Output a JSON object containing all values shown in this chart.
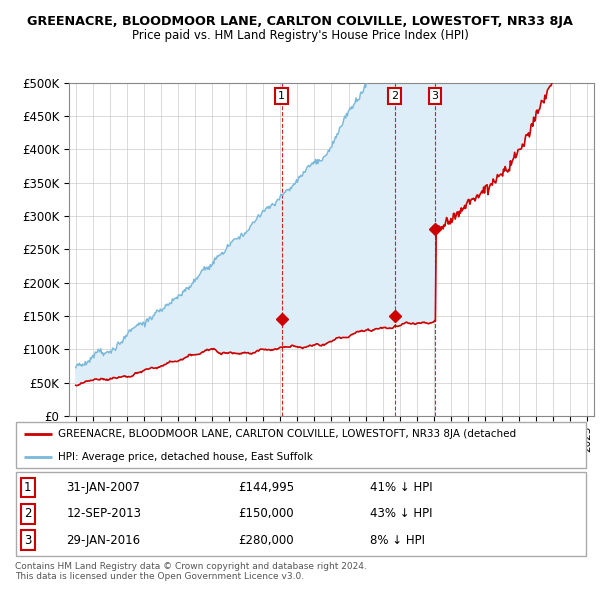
{
  "title": "GREENACRE, BLOODMOOR LANE, CARLTON COLVILLE, LOWESTOFT, NR33 8JA",
  "subtitle": "Price paid vs. HM Land Registry's House Price Index (HPI)",
  "ylim": [
    0,
    500000
  ],
  "yticks": [
    0,
    50000,
    100000,
    150000,
    200000,
    250000,
    300000,
    350000,
    400000,
    450000,
    500000
  ],
  "ytick_labels": [
    "£0",
    "£50K",
    "£100K",
    "£150K",
    "£200K",
    "£250K",
    "£300K",
    "£350K",
    "£400K",
    "£450K",
    "£500K"
  ],
  "hpi_color": "#7ab8d9",
  "price_color": "#cc0000",
  "fill_color": "#ddeef8",
  "vline_color": "#cc0000",
  "grid_color": "#cccccc",
  "sales": [
    {
      "date_num": 2007.08,
      "price": 144995,
      "label": "1"
    },
    {
      "date_num": 2013.71,
      "price": 150000,
      "label": "2"
    },
    {
      "date_num": 2016.08,
      "price": 280000,
      "label": "3"
    }
  ],
  "legend_label_red": "GREENACRE, BLOODMOOR LANE, CARLTON COLVILLE, LOWESTOFT, NR33 8JA (detached",
  "legend_label_blue": "HPI: Average price, detached house, East Suffolk",
  "table_rows": [
    {
      "num": "1",
      "date": "31-JAN-2007",
      "price": "£144,995",
      "pct": "41% ↓ HPI"
    },
    {
      "num": "2",
      "date": "12-SEP-2013",
      "price": "£150,000",
      "pct": "43% ↓ HPI"
    },
    {
      "num": "3",
      "date": "29-JAN-2016",
      "price": "£280,000",
      "pct": "8% ↓ HPI"
    }
  ],
  "footnote1": "Contains HM Land Registry data © Crown copyright and database right 2024.",
  "footnote2": "This data is licensed under the Open Government Licence v3.0.",
  "xlim_left": 1994.6,
  "xlim_right": 2025.4
}
